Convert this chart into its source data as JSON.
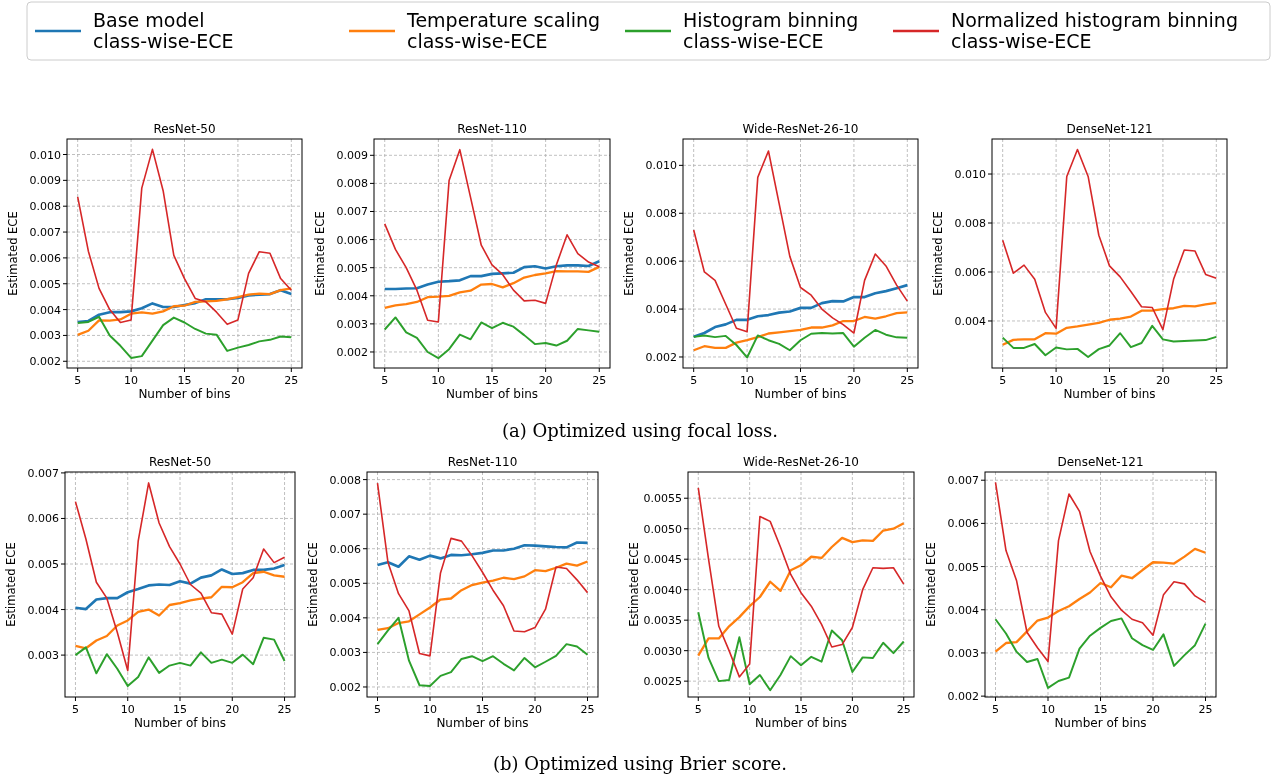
{
  "chart_data": [
    {
      "type": "line",
      "title": "ResNet-50",
      "xlabel": "Number of bins",
      "ylabel": "Estimated ECE",
      "legend": "top",
      "grid": true,
      "annotations": [
        "(a) Optimized using focal loss."
      ],
      "x": [
        5,
        6,
        7,
        8,
        9,
        10,
        11,
        12,
        13,
        14,
        15,
        16,
        17,
        18,
        19,
        20,
        21,
        22,
        23,
        24,
        25
      ],
      "xlim": [
        4,
        26
      ],
      "xticks": [
        5,
        10,
        15,
        20,
        25
      ],
      "ylim": [
        0.00174,
        0.0106
      ],
      "yticks": [
        0.002,
        0.003,
        0.004,
        0.005,
        0.006,
        0.007,
        0.008,
        0.009,
        {
          "value": 0.01,
          "label": "0.010"
        }
      ],
      "series": [
        {
          "name": "Base model\nclass-wise-ECE",
          "color": "#1f77b4",
          "values": [
            0.00352,
            0.00356,
            0.0038,
            0.0039,
            0.0039,
            0.00393,
            0.00405,
            0.00424,
            0.0041,
            0.0041,
            0.00418,
            0.00425,
            0.0044,
            0.0044,
            0.0044,
            0.00445,
            0.00455,
            0.00458,
            0.0046,
            0.00475,
            0.0046
          ]
        },
        {
          "name": "Temperature scaling\nclass-wise-ECE",
          "color": "#ff7f0e",
          "values": [
            0.00302,
            0.00318,
            0.00358,
            0.00357,
            0.00362,
            0.00384,
            0.00389,
            0.00384,
            0.00393,
            0.00413,
            0.00415,
            0.0043,
            0.00432,
            0.00434,
            0.0044,
            0.00448,
            0.00458,
            0.00462,
            0.0046,
            0.00475,
            0.00482
          ]
        },
        {
          "name": "Histogram binning\nclass-wise-ECE",
          "color": "#2ca02c",
          "values": [
            0.00348,
            0.00352,
            0.00372,
            0.003,
            0.0026,
            0.00213,
            0.0022,
            0.0028,
            0.0034,
            0.00369,
            0.0035,
            0.00325,
            0.00307,
            0.00303,
            0.0024,
            0.00253,
            0.00263,
            0.00277,
            0.00283,
            0.00296,
            0.00293
          ]
        },
        {
          "name": "Normalized histogram binning\nclass-wise-ECE",
          "color": "#d62728",
          "values": [
            0.00836,
            0.00626,
            0.00482,
            0.004,
            0.0035,
            0.0036,
            0.0087,
            0.0102,
            0.0086,
            0.0061,
            0.0052,
            0.00443,
            0.0043,
            0.0039,
            0.00343,
            0.0036,
            0.0054,
            0.00624,
            0.00618,
            0.0052,
            0.00475
          ]
        }
      ]
    },
    {
      "type": "line",
      "title": "ResNet-110",
      "xlabel": "Number of bins",
      "ylabel": "Estimated ECE",
      "grid": true,
      "x": [
        5,
        6,
        7,
        8,
        9,
        10,
        11,
        12,
        13,
        14,
        15,
        16,
        17,
        18,
        19,
        20,
        21,
        22,
        23,
        24,
        25
      ],
      "xlim": [
        4,
        26
      ],
      "xticks": [
        5,
        10,
        15,
        20,
        25
      ],
      "ylim": [
        0.00143,
        0.00958
      ],
      "yticks": [
        0.002,
        0.003,
        0.004,
        0.005,
        0.006,
        0.007,
        0.008,
        0.009
      ],
      "series": [
        {
          "color": "#1f77b4",
          "values": [
            0.00424,
            0.00424,
            0.00426,
            0.00427,
            0.0044,
            0.0045,
            0.00452,
            0.00455,
            0.0047,
            0.0047,
            0.00478,
            0.0048,
            0.00482,
            0.00502,
            0.00505,
            0.00497,
            0.00505,
            0.00508,
            0.00508,
            0.00506,
            0.00523
          ]
        },
        {
          "color": "#ff7f0e",
          "values": [
            0.00357,
            0.00366,
            0.0037,
            0.00378,
            0.00395,
            0.00397,
            0.004,
            0.00412,
            0.00418,
            0.0044,
            0.00442,
            0.0043,
            0.00445,
            0.00465,
            0.00474,
            0.0048,
            0.00488,
            0.00487,
            0.00487,
            0.00485,
            0.00503
          ]
        },
        {
          "color": "#2ca02c",
          "values": [
            0.0028,
            0.00323,
            0.0027,
            0.0025,
            0.002,
            0.00178,
            0.0021,
            0.00262,
            0.00245,
            0.00305,
            0.00285,
            0.00304,
            0.0029,
            0.0026,
            0.00228,
            0.00232,
            0.00223,
            0.0024,
            0.00282,
            0.00277,
            0.00272
          ]
        },
        {
          "color": "#d62728",
          "values": [
            0.00656,
            0.00565,
            0.005,
            0.0042,
            0.00313,
            0.00307,
            0.0081,
            0.0092,
            0.0075,
            0.0058,
            0.0051,
            0.00475,
            0.0042,
            0.00382,
            0.00384,
            0.00373,
            0.0051,
            0.00617,
            0.0055,
            0.0052,
            0.00503
          ]
        }
      ]
    },
    {
      "type": "line",
      "title": "Wide-ResNet-26-10",
      "xlabel": "Number of bins",
      "ylabel": "Estimated ECE",
      "grid": true,
      "x": [
        5,
        6,
        7,
        8,
        9,
        10,
        11,
        12,
        13,
        14,
        15,
        16,
        17,
        18,
        19,
        20,
        21,
        22,
        23,
        24,
        25
      ],
      "xlim": [
        4,
        26
      ],
      "xticks": [
        5,
        10,
        15,
        20,
        25
      ],
      "ylim": [
        0.00154,
        0.0111
      ],
      "yticks": [
        0.002,
        0.004,
        0.006,
        0.008,
        {
          "value": 0.01,
          "label": "0.010"
        }
      ],
      "series": [
        {
          "color": "#1f77b4",
          "values": [
            0.00284,
            0.003,
            0.00325,
            0.00336,
            0.00355,
            0.00355,
            0.0037,
            0.00375,
            0.00385,
            0.0039,
            0.00405,
            0.00405,
            0.00425,
            0.00433,
            0.00432,
            0.0045,
            0.0045,
            0.00466,
            0.00475,
            0.00487,
            0.005
          ]
        },
        {
          "color": "#ff7f0e",
          "values": [
            0.00228,
            0.00245,
            0.00238,
            0.00238,
            0.0026,
            0.0027,
            0.00283,
            0.00298,
            0.00303,
            0.00308,
            0.00313,
            0.00323,
            0.00323,
            0.00332,
            0.0035,
            0.0035,
            0.00367,
            0.0036,
            0.0037,
            0.00383,
            0.00386
          ]
        },
        {
          "color": "#2ca02c",
          "values": [
            0.00284,
            0.0029,
            0.00283,
            0.00288,
            0.0025,
            0.00198,
            0.0029,
            0.0027,
            0.00255,
            0.00228,
            0.0027,
            0.00297,
            0.003,
            0.00298,
            0.003,
            0.00243,
            0.0028,
            0.00313,
            0.00293,
            0.00282,
            0.0028
          ]
        },
        {
          "color": "#d62728",
          "values": [
            0.0073,
            0.00555,
            0.0052,
            0.0042,
            0.0032,
            0.00305,
            0.0095,
            0.0106,
            0.0084,
            0.0062,
            0.0049,
            0.00458,
            0.004,
            0.00363,
            0.00335,
            0.003,
            0.0052,
            0.0063,
            0.0058,
            0.005,
            0.00433
          ]
        }
      ]
    },
    {
      "type": "line",
      "title": "DenseNet-121",
      "xlabel": "Number of bins",
      "ylabel": "Estimated ECE",
      "grid": true,
      "x": [
        5,
        6,
        7,
        8,
        9,
        10,
        11,
        12,
        13,
        14,
        15,
        16,
        17,
        18,
        19,
        20,
        21,
        22,
        23,
        24,
        25
      ],
      "xlim": [
        4,
        26
      ],
      "xticks": [
        5,
        10,
        15,
        20,
        25
      ],
      "ylim": [
        0.00208,
        0.01143
      ],
      "yticks": [
        0.004,
        0.006,
        0.008,
        {
          "value": 0.01,
          "label": "0.010"
        }
      ],
      "series": [
        {
          "color": "#ff7f0e",
          "values": [
            0.00303,
            0.00323,
            0.00325,
            0.00325,
            0.0035,
            0.00348,
            0.00372,
            0.00378,
            0.00385,
            0.00392,
            0.00405,
            0.0041,
            0.00418,
            0.00442,
            0.00442,
            0.00448,
            0.00452,
            0.00462,
            0.0046,
            0.00468,
            0.00474
          ]
        },
        {
          "color": "#2ca02c",
          "values": [
            0.00332,
            0.0029,
            0.0029,
            0.00306,
            0.0026,
            0.00292,
            0.00284,
            0.00286,
            0.00253,
            0.00285,
            0.003,
            0.0035,
            0.00293,
            0.0031,
            0.0038,
            0.00325,
            0.00316,
            0.00318,
            0.0032,
            0.00322,
            0.00335
          ]
        },
        {
          "color": "#d62728",
          "values": [
            0.0073,
            0.00595,
            0.00628,
            0.0057,
            0.00435,
            0.0037,
            0.0099,
            0.011,
            0.0099,
            0.0075,
            0.00625,
            0.0058,
            0.0052,
            0.00458,
            0.00455,
            0.00365,
            0.0057,
            0.0069,
            0.00686,
            0.0059,
            0.00574
          ]
        }
      ]
    },
    {
      "type": "line",
      "title": "ResNet-50",
      "xlabel": "Number of bins",
      "ylabel": "Estimated ECE",
      "grid": true,
      "annotations": [
        "(b) Optimized using Brier score."
      ],
      "x": [
        5,
        6,
        7,
        8,
        9,
        10,
        11,
        12,
        13,
        14,
        15,
        16,
        17,
        18,
        19,
        20,
        21,
        22,
        23,
        24,
        25
      ],
      "xlim": [
        4,
        26
      ],
      "xticks": [
        5,
        10,
        15,
        20,
        25
      ],
      "ylim": [
        0.00208,
        0.00702
      ],
      "yticks": [
        0.003,
        0.004,
        0.005,
        0.006,
        0.007
      ],
      "series": [
        {
          "color": "#1f77b4",
          "values": [
            0.00404,
            0.00401,
            0.00422,
            0.00425,
            0.00425,
            0.00438,
            0.00445,
            0.00453,
            0.00455,
            0.00454,
            0.00462,
            0.00457,
            0.0047,
            0.00475,
            0.00488,
            0.00478,
            0.0048,
            0.00487,
            0.00487,
            0.0049,
            0.00498
          ]
        },
        {
          "color": "#ff7f0e",
          "values": [
            0.0032,
            0.00315,
            0.00332,
            0.00342,
            0.00365,
            0.00376,
            0.00395,
            0.004,
            0.00387,
            0.0041,
            0.00414,
            0.0042,
            0.00424,
            0.00427,
            0.0045,
            0.00449,
            0.0046,
            0.0048,
            0.00483,
            0.00475,
            0.00472
          ]
        },
        {
          "color": "#2ca02c",
          "values": [
            0.003,
            0.00317,
            0.0026,
            0.00302,
            0.0027,
            0.00232,
            0.00252,
            0.00295,
            0.00261,
            0.00277,
            0.00283,
            0.00277,
            0.00306,
            0.00283,
            0.0029,
            0.00283,
            0.00301,
            0.0028,
            0.00338,
            0.00334,
            0.00287
          ]
        },
        {
          "color": "#d62728",
          "values": [
            0.00637,
            0.00555,
            0.0046,
            0.00425,
            0.0035,
            0.00266,
            0.0055,
            0.00678,
            0.0059,
            0.00538,
            0.005,
            0.00455,
            0.00436,
            0.00393,
            0.0039,
            0.00346,
            0.00445,
            0.0047,
            0.00533,
            0.00503,
            0.00515
          ]
        }
      ]
    },
    {
      "type": "line",
      "title": "ResNet-110",
      "xlabel": "Number of bins",
      "ylabel": "Estimated ECE",
      "grid": true,
      "x": [
        5,
        6,
        7,
        8,
        9,
        10,
        11,
        12,
        13,
        14,
        15,
        16,
        17,
        18,
        19,
        20,
        21,
        22,
        23,
        24,
        25
      ],
      "xlim": [
        4,
        26
      ],
      "xticks": [
        5,
        10,
        15,
        20,
        25
      ],
      "ylim": [
        0.00171,
        0.00822
      ],
      "yticks": [
        0.002,
        0.003,
        0.004,
        0.005,
        0.006,
        0.007,
        0.008
      ],
      "series": [
        {
          "color": "#1f77b4",
          "values": [
            0.00553,
            0.00561,
            0.00548,
            0.00578,
            0.00568,
            0.0058,
            0.00572,
            0.00582,
            0.00581,
            0.00584,
            0.00588,
            0.00595,
            0.00595,
            0.006,
            0.0061,
            0.00609,
            0.00607,
            0.00605,
            0.00604,
            0.00618,
            0.00617
          ]
        },
        {
          "color": "#ff7f0e",
          "values": [
            0.00365,
            0.0037,
            0.00385,
            0.0039,
            0.0041,
            0.0043,
            0.00453,
            0.00456,
            0.0048,
            0.00495,
            0.00502,
            0.00508,
            0.00516,
            0.00512,
            0.0052,
            0.00538,
            0.00535,
            0.00545,
            0.00557,
            0.00551,
            0.00563
          ]
        },
        {
          "color": "#2ca02c",
          "values": [
            0.00324,
            0.00364,
            0.004,
            0.00276,
            0.00205,
            0.00203,
            0.00232,
            0.00243,
            0.00281,
            0.00289,
            0.00275,
            0.00289,
            0.00267,
            0.00248,
            0.00284,
            0.00257,
            0.00273,
            0.0029,
            0.00324,
            0.00317,
            0.00293
          ]
        },
        {
          "color": "#d62728",
          "values": [
            0.0079,
            0.0056,
            0.0047,
            0.0042,
            0.00297,
            0.0029,
            0.0053,
            0.0063,
            0.00622,
            0.0058,
            0.00532,
            0.0048,
            0.00435,
            0.00362,
            0.0036,
            0.00372,
            0.00425,
            0.00547,
            0.00543,
            0.0051,
            0.00473
          ]
        }
      ]
    },
    {
      "type": "line",
      "title": "Wide-ResNet-26-10",
      "xlabel": "Number of bins",
      "ylabel": "Estimated ECE",
      "grid": true,
      "x": [
        5,
        6,
        7,
        8,
        9,
        10,
        11,
        12,
        13,
        14,
        15,
        16,
        17,
        18,
        19,
        20,
        21,
        22,
        23,
        24,
        25
      ],
      "xlim": [
        4,
        26
      ],
      "xticks": [
        5,
        10,
        15,
        20,
        25
      ],
      "ylim": [
        0.00224,
        0.00593
      ],
      "yticks": [
        0.0025,
        {
          "value": 0.003,
          "label": "0.0030"
        },
        0.0035,
        {
          "value": 0.004,
          "label": "0.0040"
        },
        0.0045,
        {
          "value": 0.005,
          "label": "0.0050"
        },
        0.0055
      ],
      "series": [
        {
          "color": "#ff7f0e",
          "values": [
            0.00292,
            0.0032,
            0.0032,
            0.0034,
            0.00355,
            0.00373,
            0.00388,
            0.00413,
            0.00398,
            0.00432,
            0.0044,
            0.00454,
            0.00452,
            0.0047,
            0.00485,
            0.00478,
            0.00481,
            0.0048,
            0.00497,
            0.005,
            0.00509
          ]
        },
        {
          "color": "#2ca02c",
          "values": [
            0.00363,
            0.00288,
            0.0025,
            0.00252,
            0.00322,
            0.00245,
            0.0026,
            0.00235,
            0.0026,
            0.00291,
            0.00276,
            0.0029,
            0.00282,
            0.00333,
            0.00317,
            0.00265,
            0.00289,
            0.00288,
            0.00313,
            0.00296,
            0.00315
          ]
        },
        {
          "color": "#d62728",
          "values": [
            0.00567,
            0.0045,
            0.0034,
            0.003,
            0.00257,
            0.00278,
            0.0052,
            0.00512,
            0.0047,
            0.00425,
            0.00395,
            0.00373,
            0.00343,
            0.00306,
            0.0031,
            0.00338,
            0.004,
            0.00436,
            0.00435,
            0.00436,
            0.00409
          ]
        }
      ]
    },
    {
      "type": "line",
      "title": "DenseNet-121",
      "xlabel": "Number of bins",
      "ylabel": "Estimated ECE",
      "grid": true,
      "x": [
        5,
        6,
        7,
        8,
        9,
        10,
        11,
        12,
        13,
        14,
        15,
        16,
        17,
        18,
        19,
        20,
        21,
        22,
        23,
        24,
        25
      ],
      "xlim": [
        4,
        26
      ],
      "xticks": [
        5,
        10,
        15,
        20,
        25
      ],
      "ylim": [
        0.00198,
        0.00719
      ],
      "yticks": [
        0.002,
        0.003,
        0.004,
        0.005,
        0.006,
        0.007
      ],
      "series": [
        {
          "color": "#ff7f0e",
          "values": [
            0.00303,
            0.00323,
            0.00325,
            0.0035,
            0.00375,
            0.00382,
            0.00397,
            0.00408,
            0.00425,
            0.0044,
            0.00462,
            0.00452,
            0.00479,
            0.00473,
            0.00492,
            0.0051,
            0.00509,
            0.00507,
            0.00523,
            0.00541,
            0.00532
          ]
        },
        {
          "color": "#2ca02c",
          "values": [
            0.00378,
            0.00345,
            0.00303,
            0.00279,
            0.00286,
            0.00219,
            0.00235,
            0.00243,
            0.0031,
            0.0034,
            0.00358,
            0.00374,
            0.0038,
            0.00334,
            0.00318,
            0.00307,
            0.00343,
            0.0027,
            0.00295,
            0.00318,
            0.00368
          ]
        },
        {
          "color": "#d62728",
          "values": [
            0.00695,
            0.00537,
            0.00468,
            0.00348,
            0.00312,
            0.0028,
            0.0056,
            0.00668,
            0.00628,
            0.00535,
            0.00478,
            0.0043,
            0.00399,
            0.00378,
            0.0037,
            0.00341,
            0.00435,
            0.00465,
            0.0046,
            0.00432,
            0.00417
          ]
        }
      ]
    }
  ]
}
